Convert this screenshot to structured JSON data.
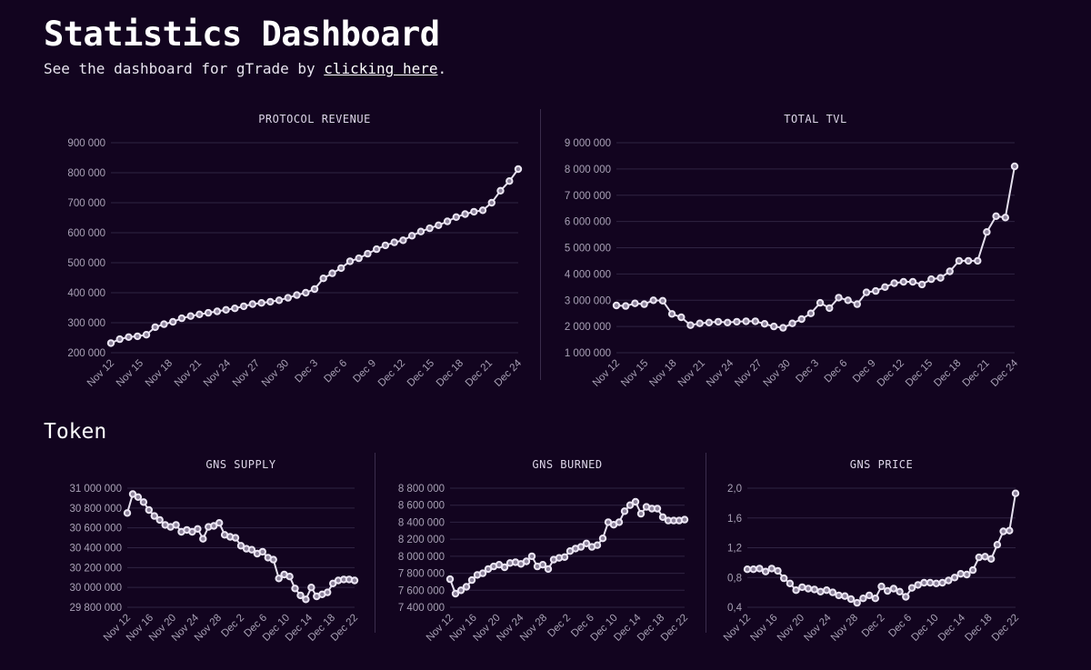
{
  "header": {
    "title": "Statistics Dashboard",
    "subtitle_prefix": "See the dashboard for gTrade by ",
    "subtitle_link": "clicking here",
    "subtitle_suffix": "."
  },
  "sections": {
    "token_title": "Token"
  },
  "colors": {
    "background": "#12041f",
    "line": "#e6e0ef",
    "grid": "#2f2342",
    "tick": "#a9a1b6"
  },
  "chart_data": [
    {
      "id": "revenue",
      "type": "line",
      "title": "PROTOCOL REVENUE",
      "x_tick_labels": [
        "Nov 12",
        "Nov 15",
        "Nov 18",
        "Nov 21",
        "Nov 24",
        "Nov 27",
        "Nov 30",
        "Dec 3",
        "Dec 6",
        "Dec 9",
        "Dec 12",
        "Dec 15",
        "Dec 18",
        "Dec 21",
        "Dec 24"
      ],
      "y_tick_labels": [
        "200 000",
        "300 000",
        "400 000",
        "500 000",
        "600 000",
        "700 000",
        "800 000",
        "900 000"
      ],
      "ylim": [
        200000,
        900000
      ],
      "values": [
        232000,
        245000,
        252000,
        255000,
        260000,
        285000,
        295000,
        303000,
        315000,
        322000,
        328000,
        333000,
        338000,
        343000,
        348000,
        355000,
        362000,
        366000,
        370000,
        375000,
        383000,
        392000,
        400000,
        412000,
        448000,
        465000,
        482000,
        505000,
        515000,
        530000,
        545000,
        558000,
        568000,
        575000,
        590000,
        604000,
        615000,
        625000,
        638000,
        652000,
        662000,
        670000,
        675000,
        700000,
        740000,
        772000,
        812000
      ]
    },
    {
      "id": "tvl",
      "type": "line",
      "title": "TOTAL TVL",
      "x_tick_labels": [
        "Nov 12",
        "Nov 15",
        "Nov 18",
        "Nov 21",
        "Nov 24",
        "Nov 27",
        "Nov 30",
        "Dec 3",
        "Dec 6",
        "Dec 9",
        "Dec 12",
        "Dec 15",
        "Dec 18",
        "Dec 21",
        "Dec 24"
      ],
      "y_tick_labels": [
        "1 000 000",
        "2 000 000",
        "3 000 000",
        "4 000 000",
        "5 000 000",
        "6 000 000",
        "7 000 000",
        "8 000 000",
        "9 000 000"
      ],
      "ylim": [
        1000000,
        9000000
      ],
      "values": [
        2800000,
        2780000,
        2880000,
        2850000,
        3000000,
        2980000,
        2480000,
        2350000,
        2050000,
        2120000,
        2150000,
        2180000,
        2150000,
        2180000,
        2200000,
        2200000,
        2100000,
        2000000,
        1950000,
        2120000,
        2280000,
        2500000,
        2900000,
        2700000,
        3100000,
        3000000,
        2850000,
        3300000,
        3350000,
        3500000,
        3650000,
        3700000,
        3700000,
        3600000,
        3800000,
        3850000,
        4100000,
        4500000,
        4500000,
        4500000,
        5600000,
        6200000,
        6150000,
        8100000
      ]
    },
    {
      "id": "supply",
      "type": "line",
      "title": "GNS SUPPLY",
      "x_tick_labels": [
        "Nov 12",
        "Nov 16",
        "Nov 20",
        "Nov 24",
        "Nov 28",
        "Dec 2",
        "Dec 6",
        "Dec 10",
        "Dec 14",
        "Dec 18",
        "Dec 22"
      ],
      "y_tick_labels": [
        "29 800 000",
        "30 000 000",
        "30 200 000",
        "30 400 000",
        "30 600 000",
        "30 800 000",
        "31 000 000"
      ],
      "ylim": [
        29800000,
        31000000
      ],
      "values": [
        30750000,
        30940000,
        30910000,
        30860000,
        30780000,
        30720000,
        30680000,
        30630000,
        30610000,
        30630000,
        30560000,
        30580000,
        30560000,
        30590000,
        30490000,
        30610000,
        30620000,
        30650000,
        30530000,
        30510000,
        30500000,
        30420000,
        30390000,
        30380000,
        30340000,
        30360000,
        30300000,
        30280000,
        30090000,
        30130000,
        30110000,
        29990000,
        29920000,
        29880000,
        30000000,
        29910000,
        29930000,
        29950000,
        30040000,
        30070000,
        30080000,
        30080000,
        30070000
      ]
    },
    {
      "id": "burned",
      "type": "line",
      "title": "GNS BURNED",
      "x_tick_labels": [
        "Nov 12",
        "Nov 16",
        "Nov 20",
        "Nov 24",
        "Nov 28",
        "Dec 2",
        "Dec 6",
        "Dec 10",
        "Dec 14",
        "Dec 18",
        "Dec 22"
      ],
      "y_tick_labels": [
        "7 400 000",
        "7 600 000",
        "7 800 000",
        "8 000 000",
        "8 200 000",
        "8 400 000",
        "8 600 000",
        "8 800 000"
      ],
      "ylim": [
        7400000,
        8800000
      ],
      "values": [
        7730000,
        7560000,
        7600000,
        7640000,
        7720000,
        7780000,
        7800000,
        7850000,
        7880000,
        7900000,
        7870000,
        7920000,
        7930000,
        7910000,
        7940000,
        8000000,
        7880000,
        7900000,
        7850000,
        7960000,
        7980000,
        7990000,
        8060000,
        8090000,
        8110000,
        8150000,
        8110000,
        8130000,
        8210000,
        8400000,
        8370000,
        8400000,
        8530000,
        8600000,
        8640000,
        8500000,
        8580000,
        8560000,
        8560000,
        8460000,
        8420000,
        8420000,
        8420000,
        8430000
      ]
    },
    {
      "id": "price",
      "type": "line",
      "title": "GNS PRICE",
      "x_tick_labels": [
        "Nov 12",
        "Nov 16",
        "Nov 20",
        "Nov 24",
        "Nov 28",
        "Dec 2",
        "Dec 6",
        "Dec 10",
        "Dec 14",
        "Dec 18",
        "Dec 22"
      ],
      "y_tick_labels": [
        "0,4",
        "0,8",
        "1,2",
        "1,6",
        "2,0"
      ],
      "ylim": [
        0.4,
        2.0
      ],
      "values": [
        0.91,
        0.91,
        0.92,
        0.88,
        0.92,
        0.89,
        0.79,
        0.72,
        0.63,
        0.67,
        0.65,
        0.64,
        0.61,
        0.63,
        0.6,
        0.56,
        0.55,
        0.51,
        0.46,
        0.52,
        0.56,
        0.52,
        0.68,
        0.62,
        0.65,
        0.61,
        0.54,
        0.66,
        0.7,
        0.73,
        0.73,
        0.72,
        0.73,
        0.76,
        0.8,
        0.85,
        0.84,
        0.9,
        1.07,
        1.08,
        1.05,
        1.24,
        1.42,
        1.43,
        1.93
      ]
    }
  ]
}
